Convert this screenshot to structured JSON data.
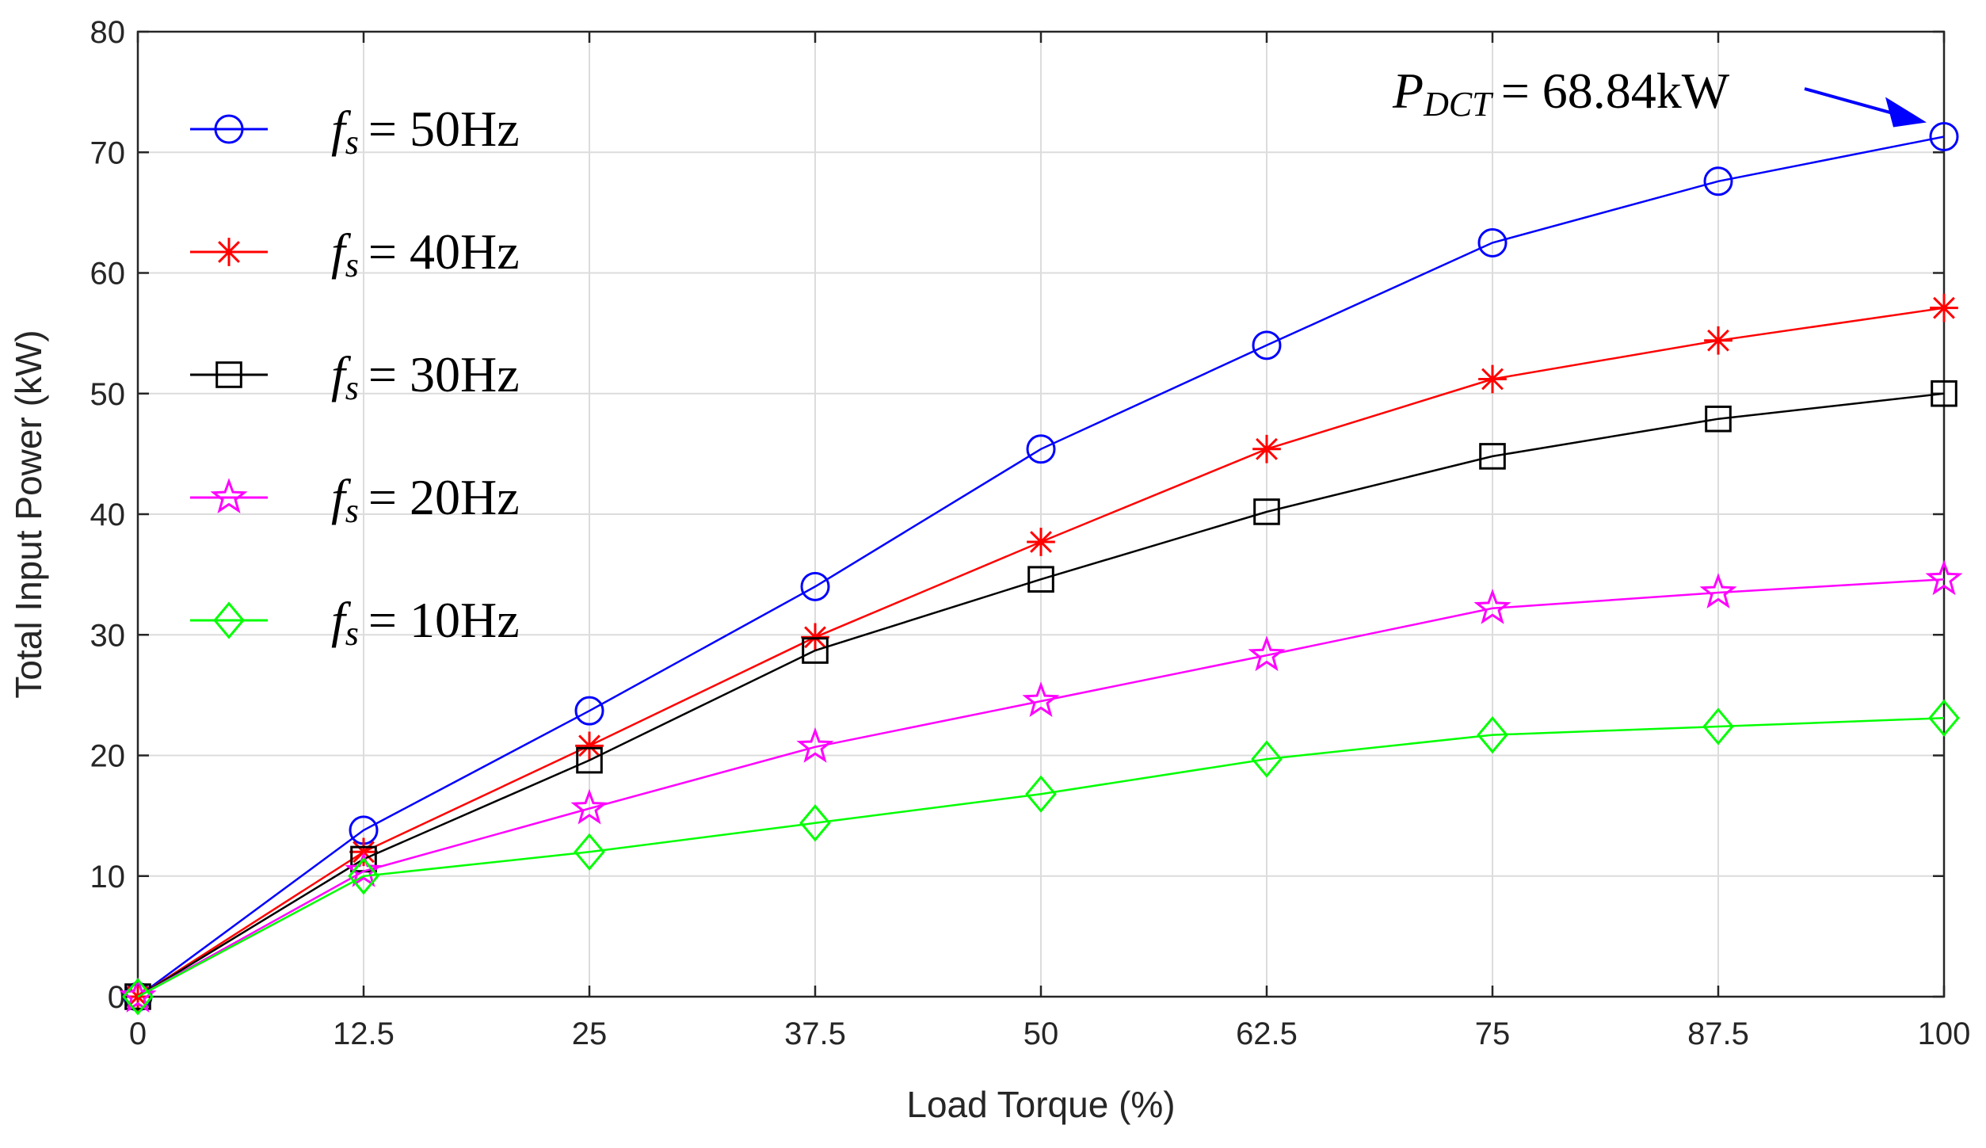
{
  "chart_data": {
    "type": "line",
    "title": "",
    "xlabel": "Load Torque (%)",
    "ylabel": "Total Input Power (kW)",
    "x": [
      0,
      12.5,
      25,
      37.5,
      50,
      62.5,
      75,
      87.5,
      100
    ],
    "xlim": [
      0,
      100
    ],
    "ylim": [
      0,
      80
    ],
    "xticks": [
      "0",
      "12.5",
      "25",
      "37.5",
      "50",
      "62.5",
      "75",
      "87.5",
      "100"
    ],
    "yticks": [
      "0",
      "10",
      "20",
      "30",
      "40",
      "50",
      "60",
      "70",
      "80"
    ],
    "grid": true,
    "legend_position": "top-left",
    "series": [
      {
        "name": "fs = 50Hz",
        "symbol": "f",
        "sub": "s",
        "freq": "= 50Hz",
        "color": "#0000ff",
        "marker": "circle",
        "values": [
          0,
          13.8,
          23.7,
          34.0,
          45.4,
          54.0,
          62.5,
          67.6,
          71.3
        ]
      },
      {
        "name": "fs = 40Hz",
        "symbol": "f",
        "sub": "s",
        "freq": "= 40Hz",
        "color": "#ff0000",
        "marker": "asterisk",
        "values": [
          0,
          12.0,
          20.8,
          29.8,
          37.7,
          45.4,
          51.2,
          54.4,
          57.1
        ]
      },
      {
        "name": "fs = 30Hz",
        "symbol": "f",
        "sub": "s",
        "freq": "= 30Hz",
        "color": "#000000",
        "marker": "square",
        "values": [
          0,
          11.4,
          19.6,
          28.7,
          34.6,
          40.2,
          44.8,
          47.9,
          50.0
        ]
      },
      {
        "name": "fs = 20Hz",
        "symbol": "f",
        "sub": "s",
        "freq": "= 20Hz",
        "color": "#ff00ff",
        "marker": "star",
        "values": [
          0,
          10.4,
          15.6,
          20.7,
          24.5,
          28.3,
          32.2,
          33.5,
          34.6
        ]
      },
      {
        "name": "fs = 10Hz",
        "symbol": "f",
        "sub": "s",
        "freq": "= 10Hz",
        "color": "#00ff00",
        "marker": "diamond",
        "values": [
          0,
          10.0,
          12.0,
          14.4,
          16.8,
          19.7,
          21.7,
          22.4,
          23.1
        ]
      }
    ],
    "annotation": {
      "symbol": "P",
      "sub": "DCT",
      "text": "= 68.84kW",
      "color": "#0000ff",
      "points_to_x": 100,
      "points_to_y": 71.3
    }
  }
}
